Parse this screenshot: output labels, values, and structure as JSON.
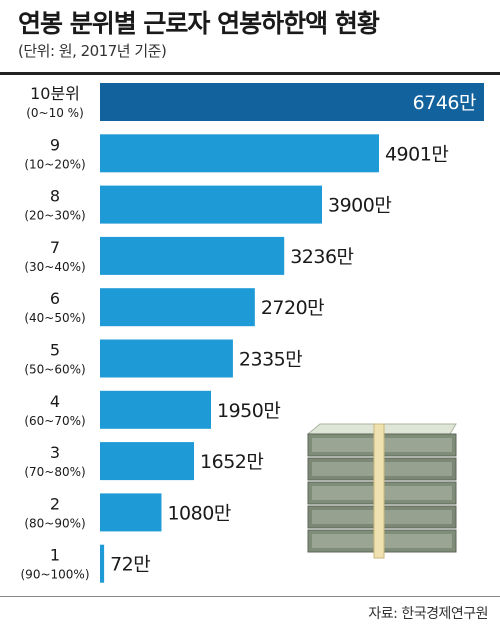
{
  "header": {
    "title": "연봉 분위별 근로자 연봉하한액 현황",
    "subtitle": "(단위: 원, 2017년 기준)"
  },
  "footer": {
    "source": "자료: 한국경제연구원"
  },
  "colors": {
    "bar": "#1e9ad6",
    "bar_top": "#12629e",
    "rule": "#222222"
  },
  "chart_data": {
    "type": "bar",
    "orientation": "horizontal",
    "title": "연봉 분위별 근로자 연봉하한액 현황",
    "subtitle": "(단위: 원, 2017년 기준)",
    "categories": [
      "10분위",
      "9",
      "8",
      "7",
      "6",
      "5",
      "4",
      "3",
      "2",
      "1"
    ],
    "category_ranges": [
      "(0~10 %)",
      "(10~20%)",
      "(20~30%)",
      "(30~40%)",
      "(40~50%)",
      "(50~60%)",
      "(60~70%)",
      "(70~80%)",
      "(80~90%)",
      "(90~100%)"
    ],
    "values": [
      6746,
      4901,
      3900,
      3236,
      2720,
      2335,
      1950,
      1652,
      1080,
      72
    ],
    "value_labels": [
      "6746만",
      "4901만",
      "3900만",
      "3236만",
      "2720만",
      "2335만",
      "1950만",
      "1652만",
      "1080만",
      "72만"
    ],
    "xlim": [
      0,
      6746
    ],
    "grid": false,
    "legend": "none"
  }
}
